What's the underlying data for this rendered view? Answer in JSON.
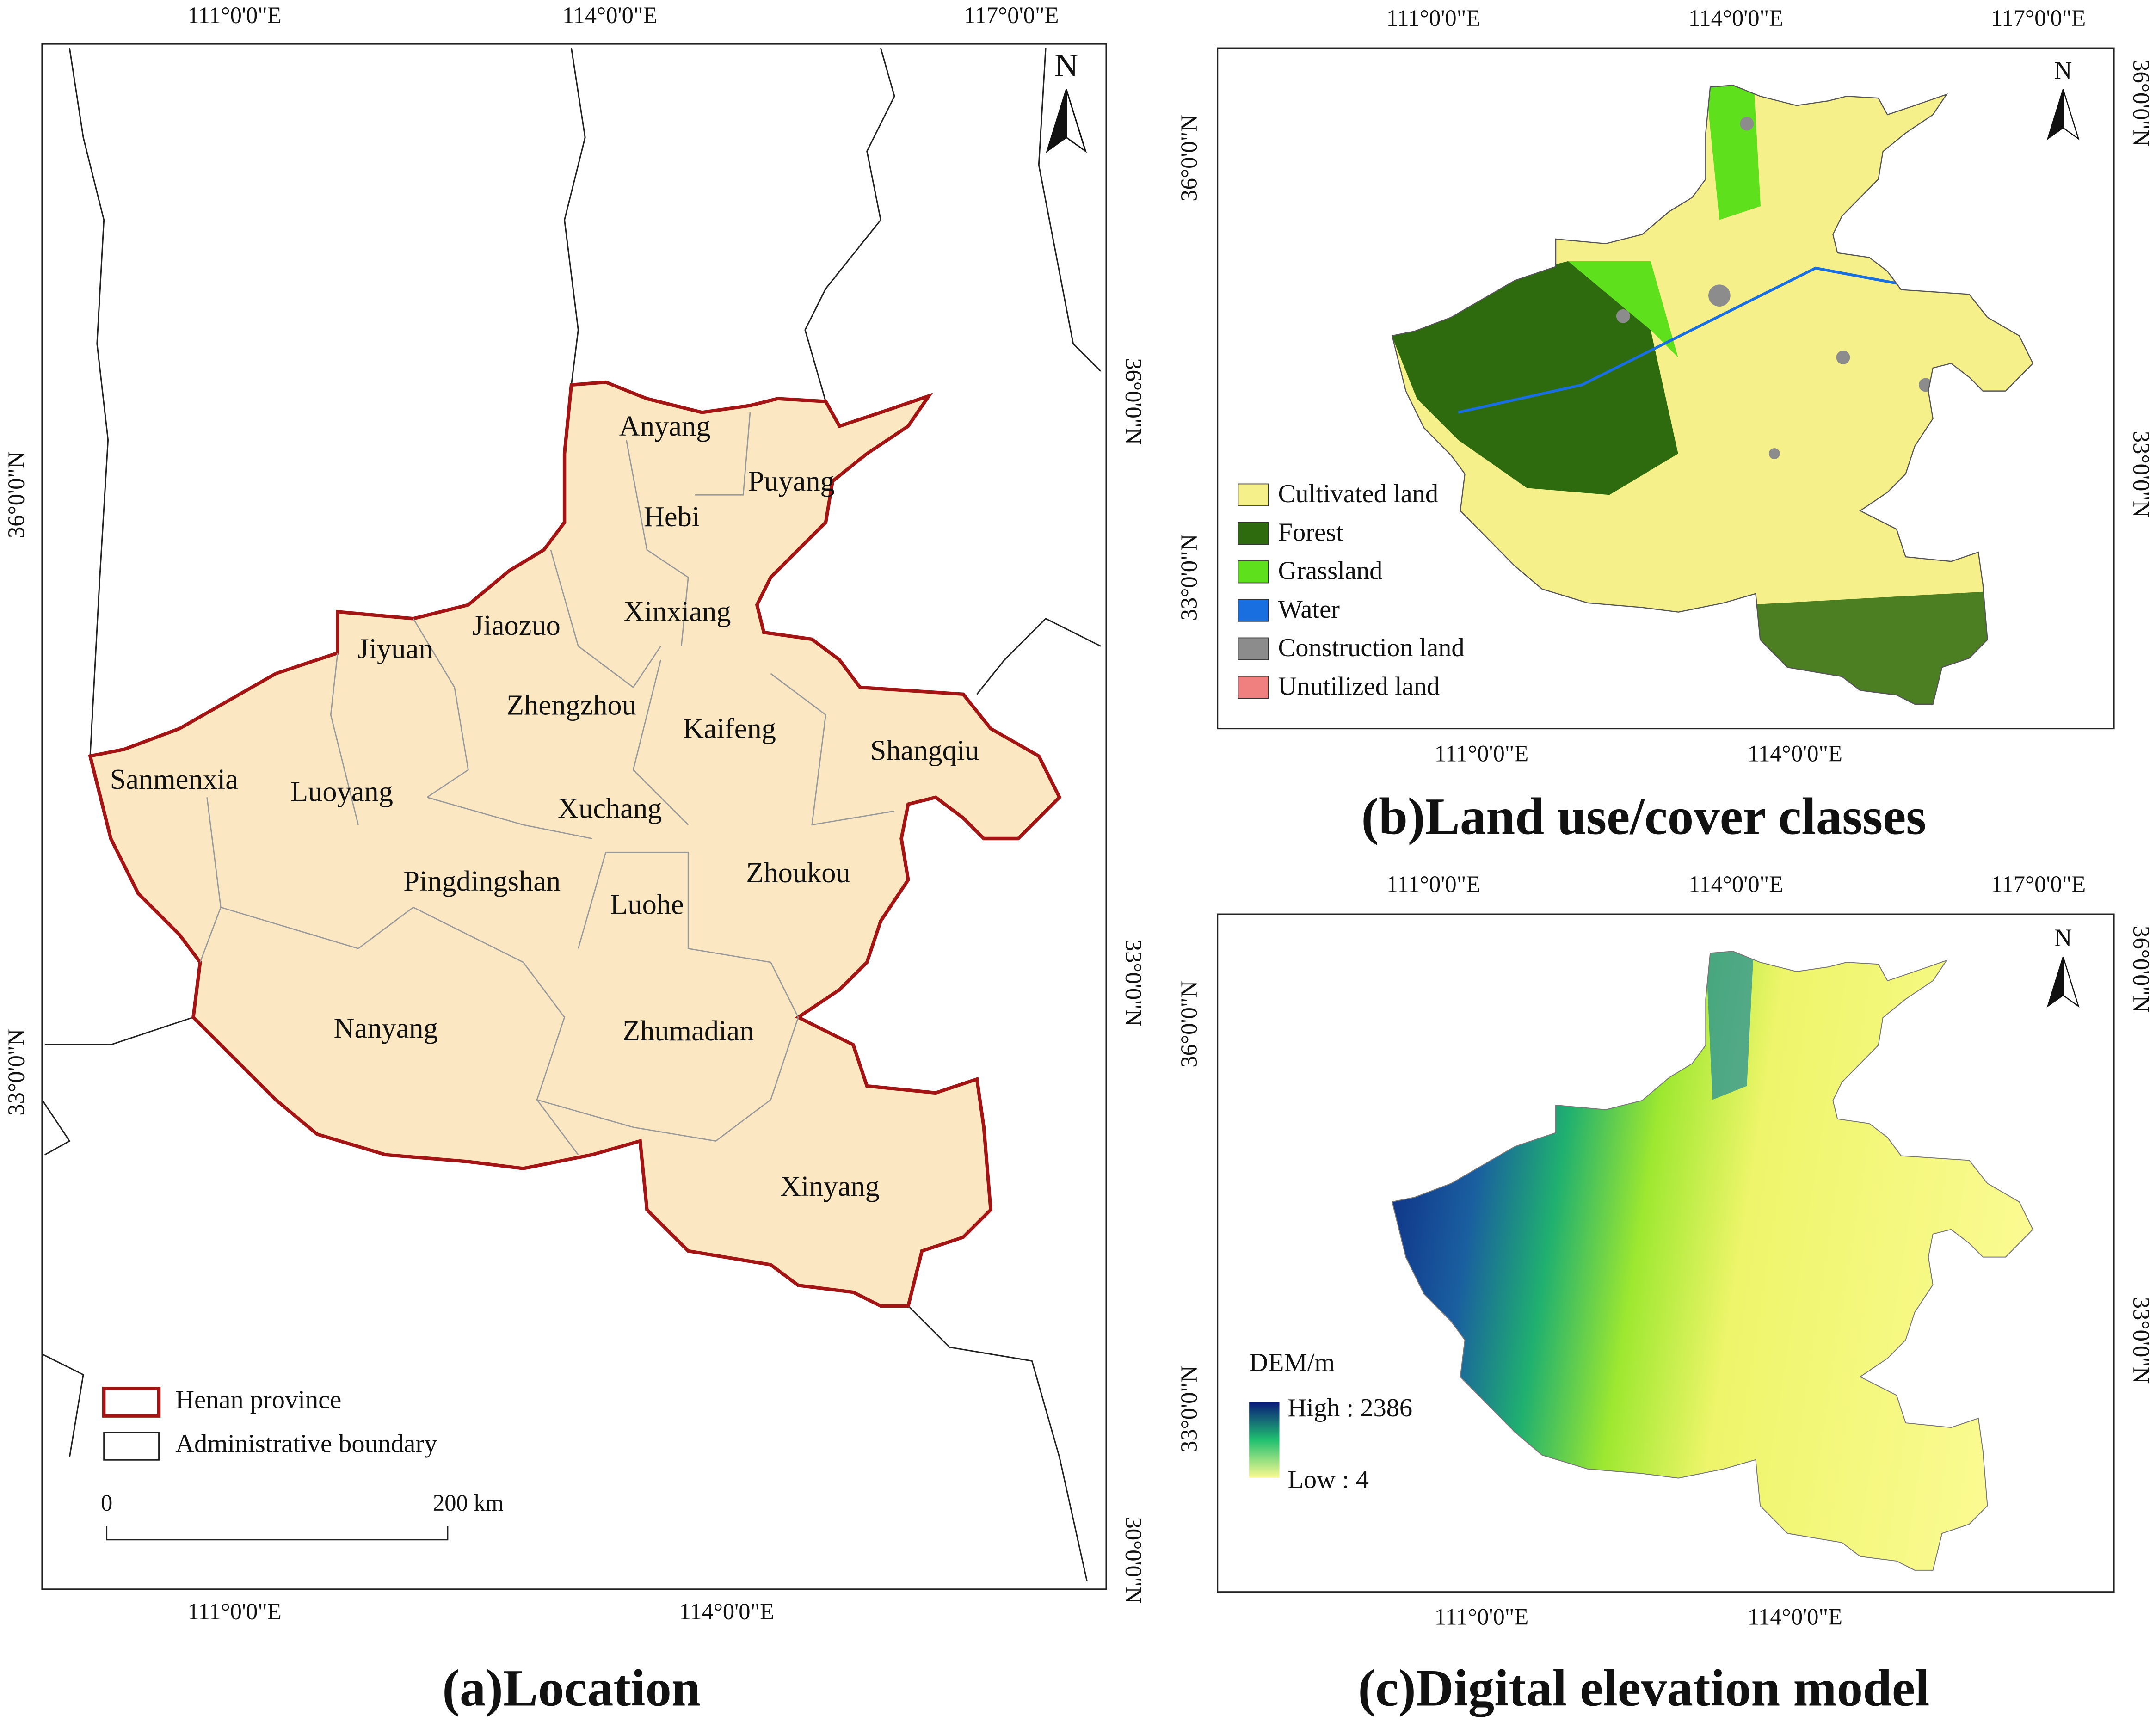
{
  "panel_a": {
    "title": "(a)Location",
    "top_axis": [
      "111°0'0\"E",
      "114°0'0\"E",
      "117°0'0\"E"
    ],
    "bottom_axis": [
      "111°0'0\"E",
      "114°0'0\"E"
    ],
    "left_axis": [
      "36°0'0\"N",
      "33°0'0\"N"
    ],
    "right_axis": [
      "36°0'0\"N",
      "33°0'0\"N",
      "30°0'0\"N"
    ],
    "north": "N",
    "cities": [
      "Anyang",
      "Puyang",
      "Hebi",
      "Xinxiang",
      "Jiaozuo",
      "Jiyuan",
      "Zhengzhou",
      "Kaifeng",
      "Shangqiu",
      "Sanmenxia",
      "Luoyang",
      "Xuchang",
      "Zhoukou",
      "Pingdingshan",
      "Luohe",
      "Nanyang",
      "Zhumadian",
      "Xinyang"
    ],
    "legend": [
      "Henan province",
      "Administrative boundary"
    ],
    "scale_bar": [
      "0",
      "200 km"
    ]
  },
  "panel_b": {
    "title": "(b)Land use/cover classes",
    "top_axis": [
      "111°0'0\"E",
      "114°0'0\"E",
      "117°0'0\"E"
    ],
    "bottom_axis": [
      "111°0'0\"E",
      "114°0'0\"E"
    ],
    "left_axis": [
      "36°0'0\"N",
      "33°0'0\"N"
    ],
    "right_axis": [
      "36°0'0\"N",
      "33°0'0\"N"
    ],
    "north": "N",
    "legend": [
      {
        "name": "Cultivated land",
        "color": "#f5f08a"
      },
      {
        "name": "Forest",
        "color": "#2e6b0e"
      },
      {
        "name": "Grassland",
        "color": "#5ee01c"
      },
      {
        "name": "Water",
        "color": "#1a6fe0"
      },
      {
        "name": "Construction land",
        "color": "#8c8c8c"
      },
      {
        "name": "Unutilized land",
        "color": "#f08080"
      }
    ]
  },
  "panel_c": {
    "title": "(c)Digital elevation model",
    "top_axis": [
      "111°0'0\"E",
      "114°0'0\"E",
      "117°0'0\"E"
    ],
    "bottom_axis": [
      "111°0'0\"E",
      "114°0'0\"E"
    ],
    "left_axis": [
      "36°0'0\"N",
      "33°0'0\"N"
    ],
    "right_axis": [
      "36°0'0\"N",
      "33°0'0\"N"
    ],
    "north": "N",
    "legend_title": "DEM/m",
    "high": "High : 2386",
    "low": "Low : 4"
  }
}
